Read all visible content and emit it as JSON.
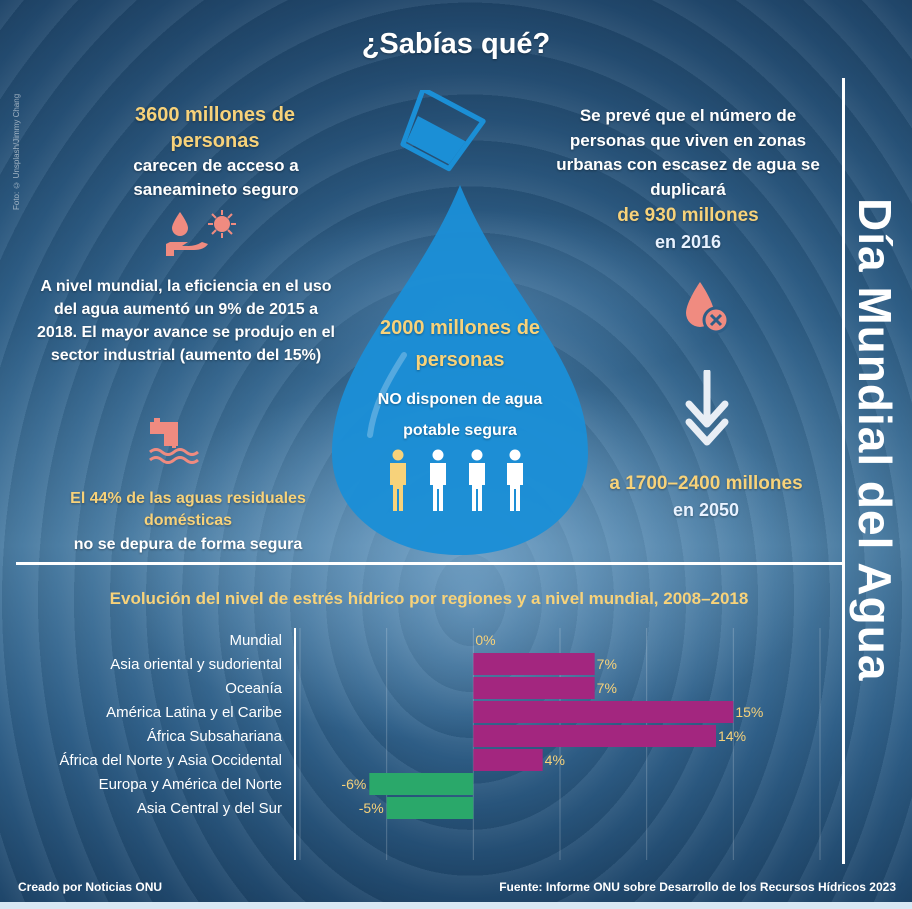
{
  "title": "¿Sabías qué?",
  "photo_credit": "Foto: © Unsplash/Jimmy Chang",
  "side_title": "Día Mundial del Agua",
  "facts": {
    "sanitation": {
      "highlight": "3600 millones de personas",
      "text": "carecen de acceso a saneamineto seguro"
    },
    "efficiency": {
      "text": "A nivel mundial, la eficiencia en el uso del agua aumentó un 9% de 2015 a 2018. El mayor avance se produjo en el sector industrial (aumento del 15%)"
    },
    "wastewater": {
      "highlight": "El 44% de las aguas residuales domésticas",
      "text": "no se depura de forma segura"
    },
    "drinking": {
      "highlight": "2000 millones de personas",
      "text": "NO disponen de agua potable segura"
    },
    "urban": {
      "text": "Se prevé que el número de personas que viven en zonas urbanas con escasez de agua se duplicará",
      "highlight": "de 930 millones",
      "year": "en 2016",
      "highlight2": "a 1700–2400 millones",
      "year2": "en 2050"
    }
  },
  "footer": {
    "left": "Creado por Noticias ONU",
    "right": "Fuente: Informe ONU sobre Desarrollo de los Recursos Hídricos 2023"
  },
  "colors": {
    "positive": "#a3267f",
    "negative": "#2aa86a",
    "highlight": "#f7d27a",
    "icon": "#f08b80",
    "drop": "#1b8fd6"
  },
  "icons": [
    "hand-water-drop-icon",
    "germ-icon",
    "pipe-pollution-icon",
    "drop-no-icon",
    "arrow-down-icon",
    "glass-icon",
    "person-icon"
  ],
  "chart_data": {
    "type": "bar",
    "orientation": "horizontal",
    "title": "Evolución del nivel de estrés hídrico por regiones y a nivel mundial, 2008–2018",
    "categories": [
      "Mundial",
      "Asia oriental y sudoriental",
      "Oceanía",
      "América Latina y el Caribe",
      "África Subsahariana",
      "África del Norte y Asia Occidental",
      "Europa y América del Norte",
      "Asia Central y del Sur"
    ],
    "values": [
      0,
      7,
      7,
      15,
      14,
      4,
      -6,
      -5
    ],
    "labels": [
      "0%",
      "7%",
      "7%",
      "15%",
      "14%",
      "4%",
      "-6%",
      "-5%"
    ],
    "xlim": [
      -10,
      20
    ],
    "xticks": [
      -10,
      -5,
      0,
      5,
      10,
      15,
      20
    ],
    "grid": true
  }
}
